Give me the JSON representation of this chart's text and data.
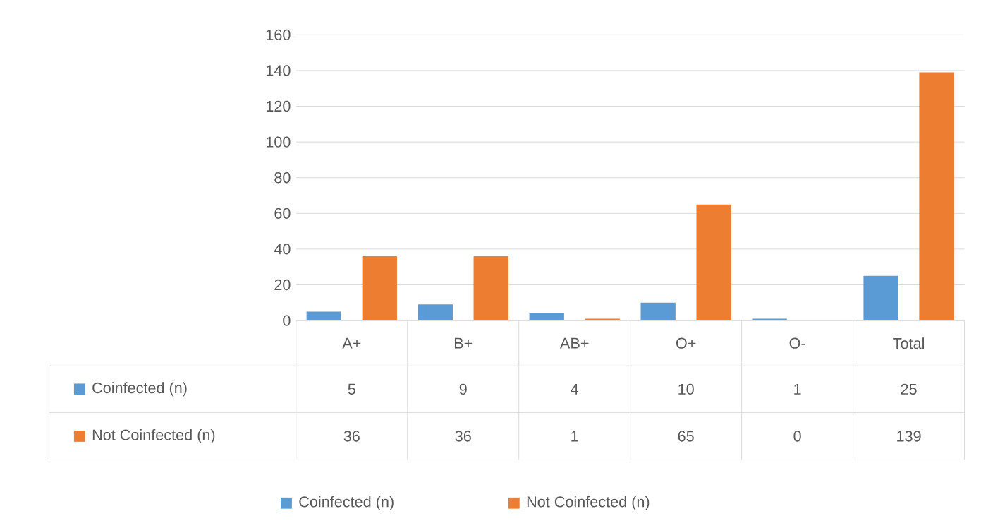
{
  "chart_data": {
    "type": "bar",
    "categories": [
      "A+",
      "B+",
      "AB+",
      "O+",
      "O-",
      "Total"
    ],
    "series": [
      {
        "name": "Coinfected (n)",
        "color": "#5b9bd5",
        "values": [
          5,
          9,
          4,
          10,
          1,
          25
        ]
      },
      {
        "name": "Not Coinfected (n)",
        "color": "#ed7d31",
        "values": [
          36,
          36,
          1,
          65,
          0,
          139
        ]
      }
    ],
    "ylim": [
      0,
      160
    ],
    "yticks": [
      0,
      20,
      40,
      60,
      80,
      100,
      120,
      140,
      160
    ],
    "grid": "y",
    "legend": "bottom",
    "data_labels": true
  }
}
